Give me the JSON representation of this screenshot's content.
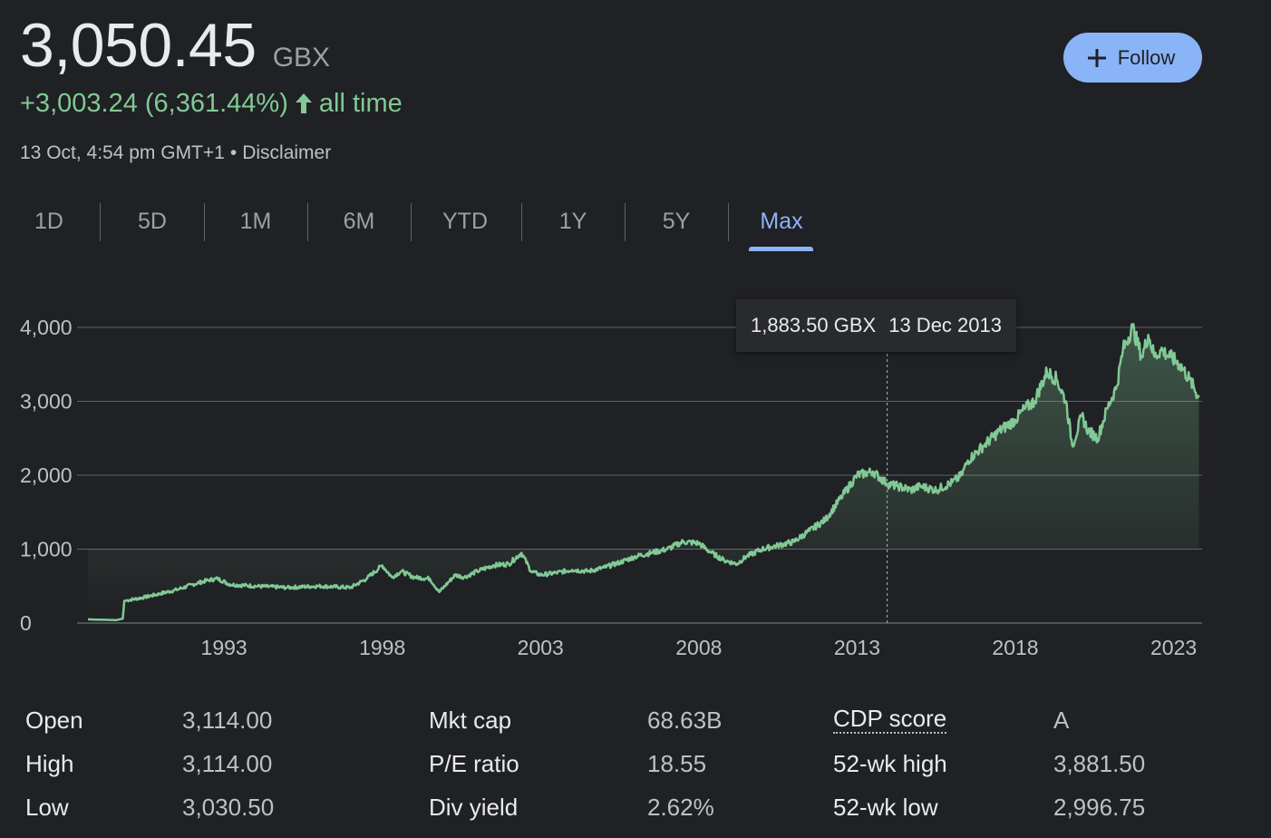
{
  "header": {
    "price": "3,050.45",
    "currency": "GBX",
    "change": "+3,003.24 (6,361.44%)",
    "change_period": "all time",
    "timestamp": "13 Oct, 4:54 pm GMT+1",
    "separator": "•",
    "disclaimer": "Disclaimer",
    "accent_color": "#81c995"
  },
  "follow_button": {
    "label": "Follow",
    "icon": "plus-icon",
    "color": "#8ab4f8"
  },
  "range_tabs": {
    "items": [
      "1D",
      "5D",
      "1M",
      "6M",
      "YTD",
      "1Y",
      "5Y",
      "Max"
    ],
    "selected": "Max",
    "selected_color": "#8ab4f8"
  },
  "tooltip": {
    "value": "1,883.50 GBX",
    "date": "13 Dec 2013"
  },
  "chart_data": {
    "type": "area",
    "title": "",
    "xlabel": "",
    "ylabel": "",
    "x_tick_labels": [
      "1993",
      "1998",
      "2003",
      "2008",
      "2013",
      "2018",
      "2023"
    ],
    "y_tick_labels": [
      "4,000",
      "3,000",
      "2,000",
      "1,000",
      "0"
    ],
    "ylim": [
      0,
      4000
    ],
    "xlim": [
      1988.5,
      2023.9
    ],
    "grid": true,
    "line_color": "#81c995",
    "hover": {
      "x": 2013.95,
      "y": 1883.5,
      "label": "1,883.50 GBX",
      "date": "13 Dec 2013"
    },
    "series": [
      {
        "x": [
          1988.7,
          1989.6,
          1989.8,
          1989.85,
          1990.5,
          1991.0,
          1991.5,
          1992.0,
          1992.5,
          1992.8,
          1993.2,
          1994.0,
          1995.0,
          1996.0,
          1997.0,
          1997.5,
          1998.0,
          1998.3,
          1998.6,
          1999.0,
          1999.5,
          1999.8,
          2000.3,
          2000.6,
          2001.0,
          2001.5,
          2002.0,
          2002.4,
          2002.7,
          2003.0,
          2003.5,
          2004.0,
          2004.5,
          2005.0,
          2005.5,
          2006.0,
          2006.5,
          2007.0,
          2007.5,
          2008.0,
          2008.4,
          2008.8,
          2009.2,
          2009.5,
          2010.0,
          2010.5,
          2011.0,
          2011.5,
          2012.0,
          2012.5,
          2013.0,
          2013.5,
          2013.95,
          2014.3,
          2014.7,
          2015.0,
          2015.5,
          2016.0,
          2016.3,
          2016.5,
          2017.0,
          2017.5,
          2018.0,
          2018.3,
          2018.6,
          2019.0,
          2019.3,
          2019.6,
          2019.8,
          2020.1,
          2020.3,
          2020.6,
          2020.9,
          2021.2,
          2021.4,
          2021.7,
          2022.0,
          2022.2,
          2022.4,
          2022.6,
          2022.9,
          2023.2,
          2023.5,
          2023.8
        ],
        "y": [
          50,
          40,
          60,
          300,
          350,
          400,
          450,
          520,
          580,
          600,
          520,
          500,
          480,
          500,
          480,
          600,
          780,
          620,
          700,
          620,
          600,
          420,
          650,
          620,
          700,
          780,
          800,
          950,
          700,
          650,
          680,
          720,
          700,
          750,
          820,
          900,
          950,
          1000,
          1100,
          1080,
          950,
          850,
          800,
          900,
          1000,
          1050,
          1100,
          1250,
          1400,
          1700,
          2000,
          2050,
          1883.5,
          1850,
          1800,
          1850,
          1800,
          1900,
          2000,
          2200,
          2400,
          2600,
          2750,
          2900,
          3000,
          3400,
          3300,
          3000,
          2400,
          2800,
          2600,
          2500,
          2900,
          3200,
          3700,
          4000,
          3600,
          3900,
          3600,
          3700,
          3600,
          3500,
          3300,
          3050
        ]
      }
    ]
  },
  "stats": [
    {
      "label": "Open",
      "value": "3,114.00"
    },
    {
      "label": "High",
      "value": "3,114.00"
    },
    {
      "label": "Low",
      "value": "3,030.50"
    },
    {
      "label": "Mkt cap",
      "value": "68.63B"
    },
    {
      "label": "P/E ratio",
      "value": "18.55"
    },
    {
      "label": "Div yield",
      "value": "2.62%"
    },
    {
      "label": "CDP score",
      "value": "A"
    },
    {
      "label": "52-wk high",
      "value": "3,881.50"
    },
    {
      "label": "52-wk low",
      "value": "2,996.75"
    }
  ]
}
